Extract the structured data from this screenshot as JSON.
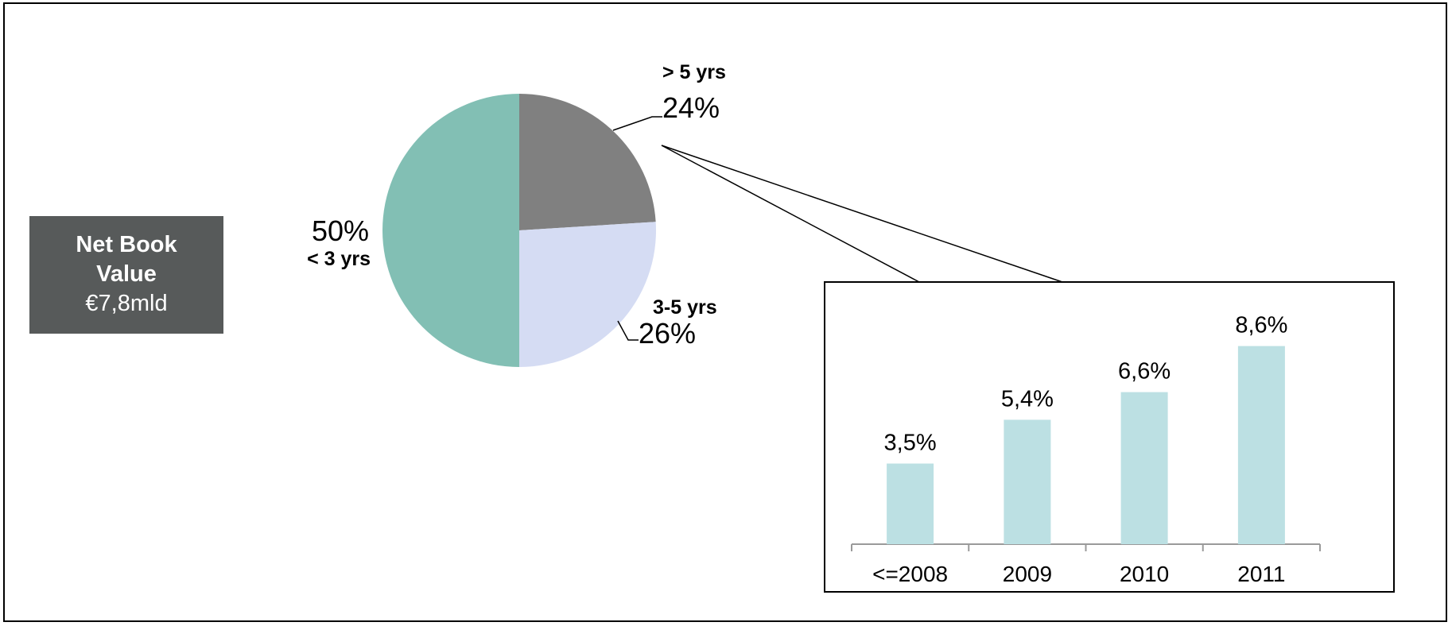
{
  "box": {
    "title_line1": "Net Book",
    "title_line2": "Value",
    "value": "€7,8mld"
  },
  "colors": {
    "slice_gt5": "#808080",
    "slice_3to5": "#d5dcf3",
    "slice_lt3": "#82bfb4",
    "bar": "#bce0e3",
    "box_bg": "#575a5a"
  },
  "chart_data": [
    {
      "type": "pie",
      "slices": [
        {
          "label": "> 5 yrs",
          "value": 24,
          "value_label": "24%"
        },
        {
          "label": "3-5 yrs",
          "value": 26,
          "value_label": "26%"
        },
        {
          "label": "< 3 yrs",
          "value": 50,
          "value_label": "50%"
        }
      ]
    },
    {
      "type": "bar",
      "categories": [
        "<=2008",
        "2009",
        "2010",
        "2011"
      ],
      "values": [
        3.5,
        5.4,
        6.6,
        8.6
      ],
      "value_labels": [
        "3,5%",
        "5,4%",
        "6,6%",
        "8,6%"
      ],
      "ylim": [
        0,
        10
      ]
    }
  ]
}
